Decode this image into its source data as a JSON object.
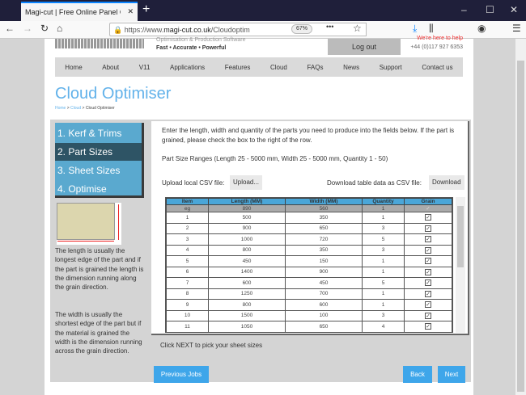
{
  "browser": {
    "tab_title": "Magi-cut | Free Online Panel Cutting",
    "url_prefix": "https://www.",
    "url_domain": "magi-cut.co.uk",
    "url_path": "/Cloudoptim",
    "zoom": "67%"
  },
  "header": {
    "tagline": "Optimisation & Production Software",
    "slogan": "Fast • Accurate • Powerful",
    "logout": "Log out",
    "help": "We're here to help",
    "phone": "+44 (0)117 927 6353"
  },
  "nav": [
    "Home",
    "About",
    "V11",
    "Applications",
    "Features",
    "Cloud",
    "FAQs",
    "News",
    "Support",
    "Contact us"
  ],
  "page": {
    "title": "Cloud Optimiser",
    "breadcrumb": [
      "Home",
      "Cloud",
      "Cloud Optimiser"
    ]
  },
  "steps": [
    {
      "label": "1. Kerf & Trims"
    },
    {
      "label": "2. Part Sizes",
      "selected": true
    },
    {
      "label": "3. Sheet Sizes"
    },
    {
      "label": "4. Optimise"
    }
  ],
  "help": {
    "length": "The length is usually the longest edge of the part and if the part is grained the length is the dimension running along the grain direction.",
    "width": "The width is usually the shortest edge of the part but if the material is grained the width is the dimension running across the grain direction."
  },
  "content": {
    "intro": "Enter the length, width and quantity of the parts you need to produce into the fields below. If the part is grained, please check the box to the right of the row.",
    "ranges": "Part Size Ranges (Length 25 - 5000 mm, Width 25 - 5000 mm, Quantity 1 - 50)",
    "upload_label": "Upload local CSV file:",
    "upload_button": "Upload...",
    "download_label": "Download table data as CSV file:",
    "download_button": "Download",
    "next_hint": "Click NEXT to pick your sheet sizes"
  },
  "table": {
    "headers": [
      "Item",
      "Length (MM)",
      "Width (MM)",
      "Quantity",
      "Grain"
    ],
    "example": [
      "eg",
      "890",
      "560",
      "1"
    ],
    "rows": [
      [
        "1",
        "500",
        "350",
        "1"
      ],
      [
        "2",
        "900",
        "650",
        "3"
      ],
      [
        "3",
        "1000",
        "720",
        "5"
      ],
      [
        "4",
        "800",
        "350",
        "3"
      ],
      [
        "5",
        "450",
        "150",
        "1"
      ],
      [
        "6",
        "1400",
        "900",
        "1"
      ],
      [
        "7",
        "600",
        "450",
        "5"
      ],
      [
        "8",
        "1250",
        "700",
        "1"
      ],
      [
        "9",
        "800",
        "600",
        "1"
      ],
      [
        "10",
        "1500",
        "100",
        "3"
      ],
      [
        "11",
        "1050",
        "650",
        "4"
      ]
    ]
  },
  "buttons": {
    "previous": "Previous Jobs",
    "back": "Back",
    "next": "Next"
  },
  "colors": {
    "accent": "#3ea6ea",
    "step_bg": "#5aa9cf",
    "step_selected": "#2e5465",
    "title": "#62b2ea"
  }
}
